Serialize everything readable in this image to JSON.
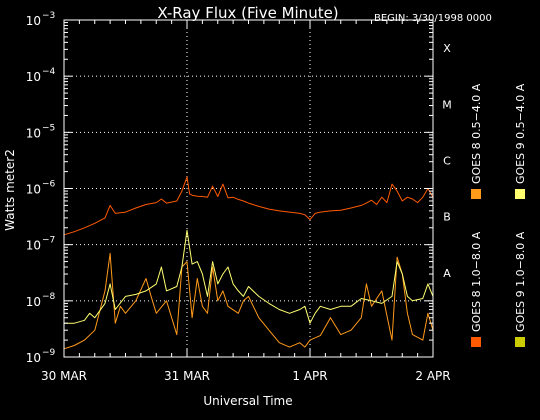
{
  "colors": {
    "background": "#000000",
    "foreground": "#ffffff",
    "goes8_long": "#ff5a00",
    "goes8_short": "#ff9a1a",
    "goes9_short": "#ffff70",
    "goes9_long": "#cccc00"
  },
  "chart_data": {
    "type": "line",
    "title": "X-Ray Flux (Five Minute)",
    "subtitle": "BEGIN: 3/30/1998 0000",
    "ylabel": "Watts meter2",
    "xlabel": "Universal Time",
    "yscale": "log",
    "ylim": [
      1e-09,
      0.001
    ],
    "xlim": [
      0,
      72
    ],
    "x_unit": "hours since BEGIN",
    "x_ticks": [
      {
        "x": 0,
        "label": "30 MAR"
      },
      {
        "x": 24,
        "label": "31 MAR"
      },
      {
        "x": 48,
        "label": "1 APR"
      },
      {
        "x": 72,
        "label": "2 APR"
      }
    ],
    "y_ticks": [
      {
        "value": 0.001,
        "base": "10",
        "exp": "−3"
      },
      {
        "value": 0.0001,
        "base": "10",
        "exp": "−4"
      },
      {
        "value": 1e-05,
        "base": "10",
        "exp": "−5"
      },
      {
        "value": 1e-06,
        "base": "10",
        "exp": "−6"
      },
      {
        "value": 1e-07,
        "base": "10",
        "exp": "−7"
      },
      {
        "value": 1e-08,
        "base": "10",
        "exp": "−8"
      },
      {
        "value": 1e-09,
        "base": "10",
        "exp": "−9"
      }
    ],
    "flare_classes": [
      {
        "label": "X",
        "value": 0.0001
      },
      {
        "label": "M",
        "value": 1e-05
      },
      {
        "label": "C",
        "value": 1e-06
      },
      {
        "label": "B",
        "value": 1e-07
      },
      {
        "label": "A",
        "value": 1e-08
      }
    ],
    "grid": true,
    "legend_position": "right",
    "series": [
      {
        "name": "GOES 8 1.0−8.0 A",
        "color": "#ff5a00",
        "x": [
          0,
          2,
          4,
          6,
          8,
          9,
          10,
          12,
          14,
          16,
          18,
          19,
          20,
          22,
          23,
          24,
          24.5,
          25,
          26,
          27,
          28,
          29,
          30,
          31,
          32,
          33,
          34,
          35,
          36,
          38,
          40,
          42,
          44,
          46,
          47,
          48,
          49,
          50,
          52,
          54,
          56,
          58,
          59,
          60,
          61,
          62,
          63,
          64,
          65,
          66,
          67,
          68,
          69,
          70,
          71,
          72
        ],
        "y": [
          1.5e-07,
          1.7e-07,
          2e-07,
          2.4e-07,
          3e-07,
          5e-07,
          3.6e-07,
          3.8e-07,
          4.5e-07,
          5.2e-07,
          5.6e-07,
          6.5e-07,
          5.5e-07,
          6e-07,
          9e-07,
          1.6e-06,
          8e-07,
          7.6e-07,
          7.3e-07,
          7.2e-07,
          7e-07,
          1.1e-06,
          7.2e-07,
          1.2e-06,
          6.8e-07,
          7e-07,
          6.4e-07,
          6e-07,
          5.5e-07,
          4.8e-07,
          4.3e-07,
          4e-07,
          3.8e-07,
          3.6e-07,
          3.4e-07,
          2.8e-07,
          3.6e-07,
          3.8e-07,
          4e-07,
          4.1e-07,
          4.5e-07,
          5e-07,
          5.5e-07,
          6.2e-07,
          5.2e-07,
          7e-07,
          5.6e-07,
          1.2e-06,
          9e-07,
          6e-07,
          7e-07,
          6.5e-07,
          5.6e-07,
          7e-07,
          1e-06,
          7e-07
        ]
      },
      {
        "name": "GOES 8 0.5−4.0 A",
        "color": "#ff9a1a",
        "x": [
          0,
          2,
          4,
          6,
          8,
          9,
          10,
          11,
          12,
          14,
          16,
          17,
          18,
          20,
          22,
          23,
          24,
          25,
          26,
          27,
          28,
          29,
          30,
          31,
          32,
          34,
          35,
          36,
          38,
          40,
          42,
          44,
          46,
          47,
          48,
          50,
          52,
          54,
          56,
          58,
          59,
          60,
          62,
          64,
          65,
          66,
          67,
          68,
          70,
          71,
          72
        ],
        "y": [
          1.4e-09,
          1.6e-09,
          2e-09,
          3e-09,
          1.5e-08,
          7e-08,
          4e-09,
          8e-09,
          6e-09,
          1e-08,
          2.5e-08,
          1.2e-08,
          6e-09,
          1e-08,
          2.5e-09,
          4e-08,
          5e-08,
          5e-09,
          2.5e-08,
          8e-09,
          6e-09,
          4e-08,
          1e-08,
          1.5e-08,
          8e-09,
          6e-09,
          1e-08,
          1.2e-08,
          5e-09,
          3e-09,
          1.8e-09,
          1.5e-09,
          1.8e-09,
          1.5e-09,
          2e-09,
          2.4e-09,
          5e-09,
          2.5e-09,
          3e-09,
          5e-09,
          2e-08,
          8e-09,
          1.5e-08,
          2e-09,
          6e-08,
          3e-08,
          6e-09,
          2.5e-09,
          2e-09,
          6e-09,
          3e-09
        ]
      },
      {
        "name": "GOES 9 0.5−4.0 A",
        "color": "#ffff70",
        "x": [
          0,
          2,
          4,
          5,
          6,
          8,
          9,
          10,
          12,
          14,
          16,
          18,
          19,
          20,
          22,
          23,
          24,
          25,
          26,
          27,
          28,
          29,
          30,
          31,
          32,
          33,
          34,
          35,
          36,
          38,
          40,
          42,
          44,
          46,
          47,
          48,
          49,
          50,
          52,
          54,
          56,
          58,
          60,
          62,
          64,
          65,
          66,
          67,
          68,
          70,
          71,
          72
        ],
        "y": [
          4e-09,
          4e-09,
          4.5e-09,
          6e-09,
          5e-09,
          9e-09,
          2e-08,
          7e-09,
          1.2e-08,
          1.3e-08,
          1.5e-08,
          2e-08,
          4e-08,
          1.5e-08,
          1.8e-08,
          4e-08,
          1.8e-07,
          4.5e-08,
          5e-08,
          3e-08,
          1.2e-08,
          5e-08,
          2e-08,
          3e-08,
          4e-08,
          2e-08,
          1.5e-08,
          1.2e-08,
          1.8e-08,
          1.2e-08,
          9e-09,
          7e-09,
          6e-09,
          7e-09,
          8e-09,
          4e-09,
          6e-09,
          8e-09,
          7e-09,
          8e-09,
          8e-09,
          1.1e-08,
          1e-08,
          9e-09,
          1.2e-08,
          5e-08,
          3e-08,
          1.2e-08,
          1e-08,
          1.1e-08,
          2e-08,
          1.2e-08
        ]
      },
      {
        "name": "GOES 9 1.0−8.0 A",
        "color": "#cccc00",
        "x": [],
        "y": []
      }
    ]
  }
}
